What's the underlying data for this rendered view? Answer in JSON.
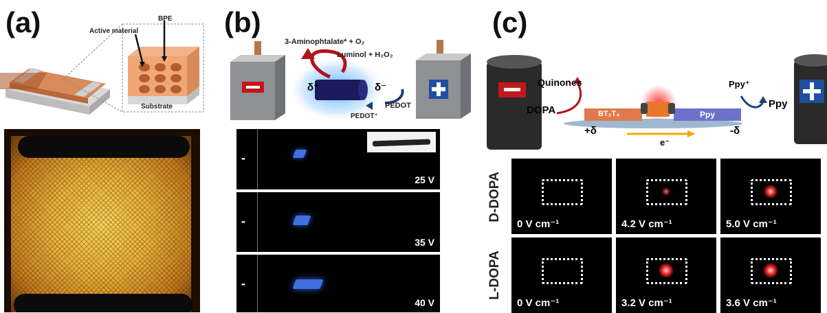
{
  "panels": {
    "a": {
      "label": "(a)",
      "callouts": {
        "active_material": "Active material",
        "bpe": "BPE",
        "substrate": "Substrate"
      }
    },
    "b": {
      "label": "(b)",
      "reaction": {
        "product": "3-Aminophtalate* + O₂",
        "reactant": "Luminol + H₂O₂",
        "delta_plus": "δ⁺",
        "delta_minus": "δ⁻",
        "pedot": "PEDOT",
        "pedot_plus": "PEDOT⁺"
      },
      "frames": [
        {
          "voltage": "25 V",
          "minus": "-",
          "plus": "+"
        },
        {
          "voltage": "35 V",
          "minus": "-",
          "plus": "+"
        },
        {
          "voltage": "40 V",
          "minus": "-",
          "plus": "+"
        }
      ]
    },
    "c": {
      "label": "(c)",
      "scheme": {
        "quinones": "Quinones",
        "dopa": "DOPA",
        "bt2t4": "BT₂T₄",
        "ppy": "Ppy",
        "ppy_plus": "Ppy⁺",
        "ppy_right": "Ppy",
        "plus_delta": "+δ",
        "minus_delta": "-δ",
        "electron": "e⁻"
      },
      "rows": [
        {
          "name": "D-DOPA",
          "fields": [
            "0 V cm⁻¹",
            "4.2 V cm⁻¹",
            "5.0 V cm⁻¹"
          ],
          "glow": [
            0,
            0.35,
            0.9
          ]
        },
        {
          "name": "L-DOPA",
          "fields": [
            "0 V cm⁻¹",
            "3.2 V cm⁻¹",
            "3.6 V cm⁻¹"
          ],
          "glow": [
            0,
            1.0,
            1.0
          ]
        }
      ]
    }
  },
  "colors": {
    "electrode": "#8e9094",
    "copper": "#c77a4b",
    "glow_blue": "#4aa6ff",
    "glow_red": "#ff2a2a",
    "minus_red": "#c4161c",
    "plus_blue": "#1f4e9e"
  }
}
